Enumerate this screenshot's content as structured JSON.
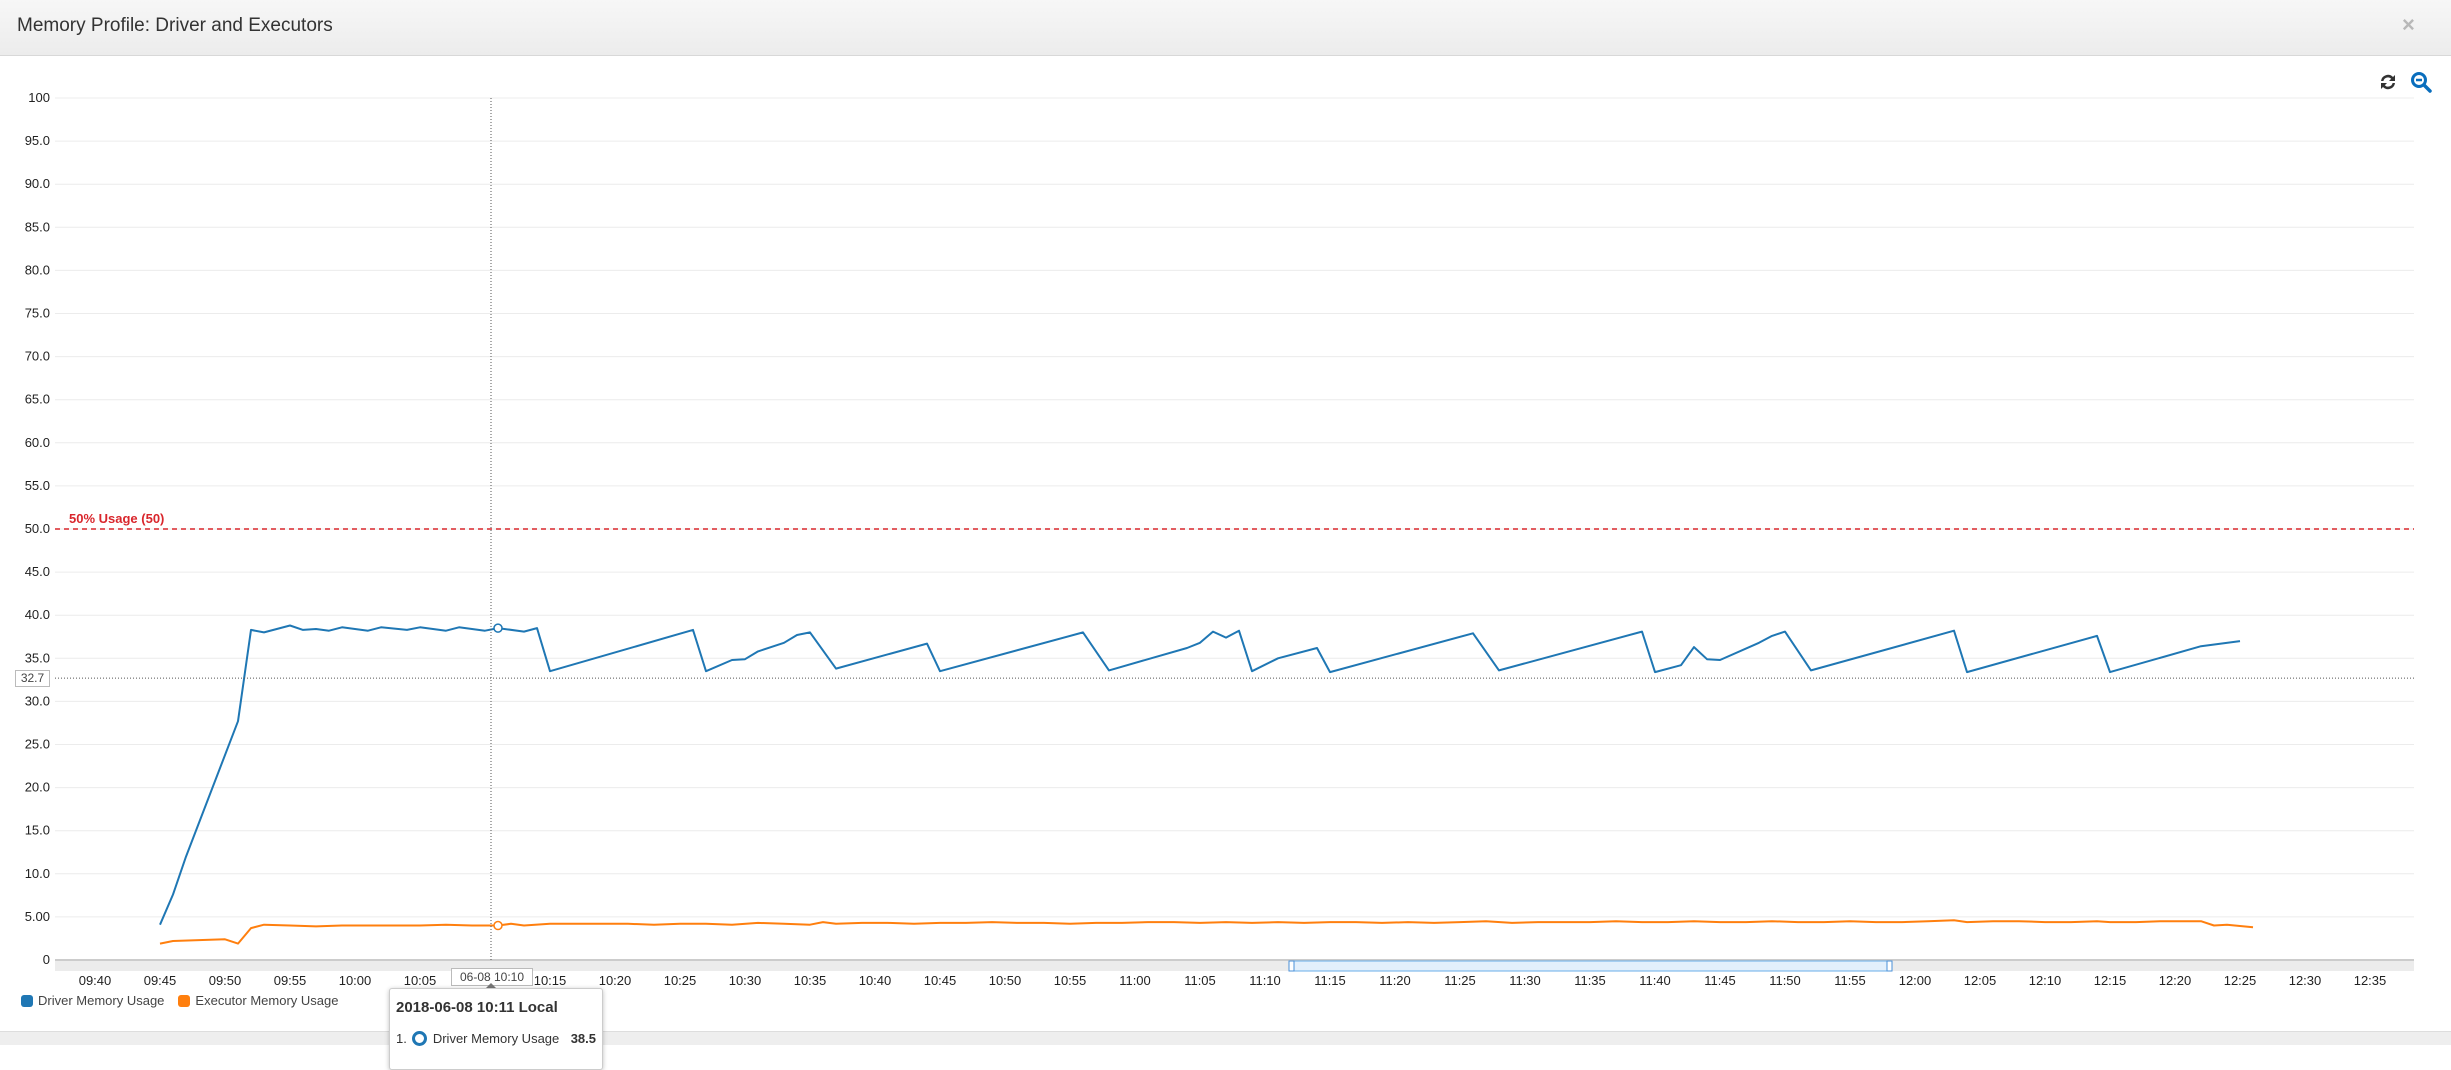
{
  "window": {
    "title": "Memory Profile: Driver and Executors",
    "close_label": "×"
  },
  "toolbar": {
    "refresh_icon": "refresh-icon",
    "zoom_out_icon": "zoom-out-icon",
    "accent": "#0a6ebd"
  },
  "crosshair": {
    "x_label": "06-08 10:10",
    "y_label": "32.7"
  },
  "tooltip": {
    "title": "2018-06-08 10:11 Local",
    "rows": [
      {
        "index": "1.",
        "series": "Driver Memory Usage",
        "value": "38.5"
      }
    ]
  },
  "legend": [
    {
      "label": "Driver Memory Usage",
      "color": "#1f77b4"
    },
    {
      "label": "Executor Memory Usage",
      "color": "#ff7f0e"
    }
  ],
  "chart_data": {
    "type": "line",
    "ylim": [
      0,
      100
    ],
    "y_ticks": [
      "0",
      "5.00",
      "10.0",
      "15.0",
      "20.0",
      "25.0",
      "30.0",
      "35.0",
      "40.0",
      "45.0",
      "50.0",
      "55.0",
      "60.0",
      "65.0",
      "70.0",
      "75.0",
      "80.0",
      "85.0",
      "90.0",
      "95.0",
      "100"
    ],
    "xlim": [
      "09:40",
      "12:35"
    ],
    "x_ticks": [
      "09:40",
      "09:45",
      "09:50",
      "09:55",
      "10:00",
      "10:05",
      "10:10",
      "10:15",
      "10:20",
      "10:25",
      "10:30",
      "10:35",
      "10:40",
      "10:45",
      "10:50",
      "10:55",
      "11:00",
      "11:05",
      "11:10",
      "11:15",
      "11:20",
      "11:25",
      "11:30",
      "11:35",
      "11:40",
      "11:45",
      "11:50",
      "11:55",
      "12:00",
      "12:05",
      "12:10",
      "12:15",
      "12:20",
      "12:25",
      "12:30",
      "12:35"
    ],
    "grid": true,
    "legend_position": "bottom-left",
    "threshold": {
      "value": 50,
      "label": "50% Usage (50)",
      "color": "#d9262c"
    },
    "crosshair_value": 32.7,
    "hover_x": "10:11",
    "navigator_range": [
      "11:12",
      "11:58"
    ],
    "series": [
      {
        "name": "Driver Memory Usage",
        "color": "#1f77b4",
        "points": [
          [
            "09:45",
            4.1
          ],
          [
            "09:46",
            7.6
          ],
          [
            "09:47",
            12.0
          ],
          [
            "09:51",
            27.7
          ],
          [
            "09:52",
            38.3
          ],
          [
            "09:53",
            38.0
          ],
          [
            "09:55",
            38.8
          ],
          [
            "09:56",
            38.3
          ],
          [
            "09:57",
            38.4
          ],
          [
            "09:58",
            38.2
          ],
          [
            "09:59",
            38.6
          ],
          [
            "10:01",
            38.2
          ],
          [
            "10:02",
            38.6
          ],
          [
            "10:04",
            38.3
          ],
          [
            "10:05",
            38.6
          ],
          [
            "10:07",
            38.2
          ],
          [
            "10:08",
            38.6
          ],
          [
            "10:10",
            38.2
          ],
          [
            "10:11",
            38.5
          ],
          [
            "10:13",
            38.1
          ],
          [
            "10:14",
            38.5
          ],
          [
            "10:15",
            33.5
          ],
          [
            "10:26",
            38.3
          ],
          [
            "10:27",
            33.5
          ],
          [
            "10:29",
            34.8
          ],
          [
            "10:30",
            34.9
          ],
          [
            "10:31",
            35.8
          ],
          [
            "10:33",
            36.8
          ],
          [
            "10:34",
            37.7
          ],
          [
            "10:35",
            38.0
          ],
          [
            "10:37",
            33.8
          ],
          [
            "10:44",
            36.7
          ],
          [
            "10:45",
            33.5
          ],
          [
            "10:56",
            38.0
          ],
          [
            "10:58",
            33.6
          ],
          [
            "11:04",
            36.2
          ],
          [
            "11:05",
            36.8
          ],
          [
            "11:06",
            38.1
          ],
          [
            "11:07",
            37.4
          ],
          [
            "11:08",
            38.2
          ],
          [
            "11:09",
            33.5
          ],
          [
            "11:11",
            35.0
          ],
          [
            "11:14",
            36.2
          ],
          [
            "11:15",
            33.4
          ],
          [
            "11:26",
            37.9
          ],
          [
            "11:28",
            33.6
          ],
          [
            "11:39",
            38.1
          ],
          [
            "11:40",
            33.4
          ],
          [
            "11:42",
            34.2
          ],
          [
            "11:43",
            36.3
          ],
          [
            "11:44",
            34.9
          ],
          [
            "11:45",
            34.8
          ],
          [
            "11:48",
            36.8
          ],
          [
            "11:49",
            37.6
          ],
          [
            "11:50",
            38.1
          ],
          [
            "11:52",
            33.6
          ],
          [
            "12:03",
            38.2
          ],
          [
            "12:04",
            33.4
          ],
          [
            "12:14",
            37.6
          ],
          [
            "12:15",
            33.4
          ],
          [
            "12:22",
            36.4
          ],
          [
            "12:25",
            37.0
          ]
        ]
      },
      {
        "name": "Executor Memory Usage",
        "color": "#ff7f0e",
        "points": [
          [
            "09:45",
            1.9
          ],
          [
            "09:46",
            2.2
          ],
          [
            "09:50",
            2.4
          ],
          [
            "09:51",
            1.9
          ],
          [
            "09:52",
            3.7
          ],
          [
            "09:53",
            4.1
          ],
          [
            "09:55",
            4.0
          ],
          [
            "09:57",
            3.9
          ],
          [
            "09:59",
            4.0
          ],
          [
            "10:01",
            4.0
          ],
          [
            "10:03",
            4.0
          ],
          [
            "10:05",
            4.0
          ],
          [
            "10:07",
            4.1
          ],
          [
            "10:09",
            4.0
          ],
          [
            "10:11",
            4.0
          ],
          [
            "10:12",
            4.2
          ],
          [
            "10:13",
            4.0
          ],
          [
            "10:15",
            4.2
          ],
          [
            "10:17",
            4.2
          ],
          [
            "10:19",
            4.2
          ],
          [
            "10:21",
            4.2
          ],
          [
            "10:23",
            4.1
          ],
          [
            "10:25",
            4.2
          ],
          [
            "10:27",
            4.2
          ],
          [
            "10:29",
            4.1
          ],
          [
            "10:31",
            4.3
          ],
          [
            "10:33",
            4.2
          ],
          [
            "10:35",
            4.1
          ],
          [
            "10:36",
            4.4
          ],
          [
            "10:37",
            4.2
          ],
          [
            "10:39",
            4.3
          ],
          [
            "10:41",
            4.3
          ],
          [
            "10:43",
            4.2
          ],
          [
            "10:45",
            4.3
          ],
          [
            "10:47",
            4.3
          ],
          [
            "10:49",
            4.4
          ],
          [
            "10:51",
            4.3
          ],
          [
            "10:53",
            4.3
          ],
          [
            "10:55",
            4.2
          ],
          [
            "10:57",
            4.3
          ],
          [
            "10:59",
            4.3
          ],
          [
            "11:01",
            4.4
          ],
          [
            "11:03",
            4.4
          ],
          [
            "11:05",
            4.3
          ],
          [
            "11:07",
            4.4
          ],
          [
            "11:09",
            4.3
          ],
          [
            "11:11",
            4.4
          ],
          [
            "11:13",
            4.3
          ],
          [
            "11:15",
            4.4
          ],
          [
            "11:17",
            4.4
          ],
          [
            "11:19",
            4.3
          ],
          [
            "11:21",
            4.4
          ],
          [
            "11:23",
            4.3
          ],
          [
            "11:25",
            4.4
          ],
          [
            "11:27",
            4.5
          ],
          [
            "11:29",
            4.3
          ],
          [
            "11:31",
            4.4
          ],
          [
            "11:33",
            4.4
          ],
          [
            "11:35",
            4.4
          ],
          [
            "11:37",
            4.5
          ],
          [
            "11:39",
            4.4
          ],
          [
            "11:41",
            4.4
          ],
          [
            "11:43",
            4.5
          ],
          [
            "11:45",
            4.4
          ],
          [
            "11:47",
            4.4
          ],
          [
            "11:49",
            4.5
          ],
          [
            "11:51",
            4.4
          ],
          [
            "11:53",
            4.4
          ],
          [
            "11:55",
            4.5
          ],
          [
            "11:57",
            4.4
          ],
          [
            "11:59",
            4.4
          ],
          [
            "12:01",
            4.5
          ],
          [
            "12:03",
            4.6
          ],
          [
            "12:04",
            4.4
          ],
          [
            "12:06",
            4.5
          ],
          [
            "12:08",
            4.5
          ],
          [
            "12:10",
            4.4
          ],
          [
            "12:12",
            4.4
          ],
          [
            "12:14",
            4.5
          ],
          [
            "12:15",
            4.4
          ],
          [
            "12:17",
            4.4
          ],
          [
            "12:19",
            4.5
          ],
          [
            "12:21",
            4.5
          ],
          [
            "12:22",
            4.5
          ],
          [
            "12:23",
            4.0
          ],
          [
            "12:24",
            4.1
          ],
          [
            "12:26",
            3.8
          ]
        ]
      }
    ]
  }
}
